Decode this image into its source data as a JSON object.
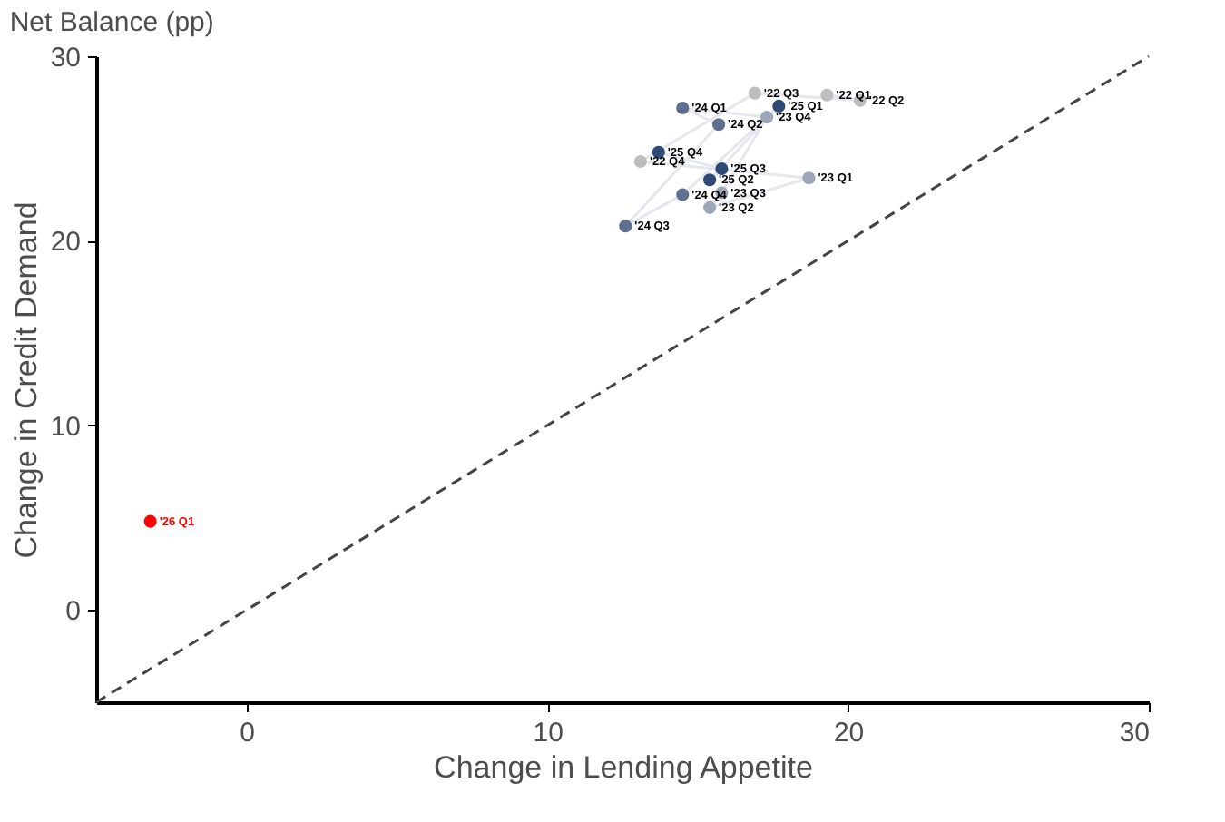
{
  "chart_data": {
    "type": "scatter",
    "title": "Net Balance (pp)",
    "xlabel": "Change in Lending Appetite",
    "ylabel": "Change in Credit Demand",
    "xlim": [
      -5,
      30
    ],
    "ylim": [
      -5,
      30
    ],
    "xticks": [
      0,
      10,
      20,
      30
    ],
    "yticks": [
      0,
      10,
      20,
      30
    ],
    "grid": false,
    "series": [
      {
        "type": "line",
        "color": "#e4e7ee",
        "line_style": "solid",
        "marker": "none",
        "x": [
          19.3,
          20.4,
          16.9,
          13.1,
          18.7,
          15.4,
          15.8,
          17.3,
          14.5,
          15.7,
          12.6,
          14.5,
          17.7,
          15.4,
          15.8,
          13.7
        ],
        "values": [
          27.9,
          27.6,
          28.0,
          24.3,
          23.4,
          21.8,
          22.6,
          26.7,
          27.2,
          26.3,
          20.8,
          22.5,
          27.3,
          23.3,
          23.9,
          24.8
        ]
      },
      {
        "type": "line",
        "color": "#444444",
        "line_style": "dashed",
        "marker": "none",
        "x": [
          -5,
          30
        ],
        "values": [
          -5,
          30
        ]
      },
      {
        "marker": "circle",
        "x": [
          19.3,
          20.4,
          16.9,
          13.1,
          18.7,
          15.4,
          15.8,
          17.3,
          14.5,
          15.7,
          12.6,
          14.5,
          17.7,
          15.4,
          15.8,
          13.7,
          -3.2
        ],
        "values": [
          27.9,
          27.6,
          28.0,
          24.3,
          23.4,
          21.8,
          22.6,
          26.7,
          27.2,
          26.3,
          20.8,
          22.5,
          27.3,
          23.3,
          23.9,
          24.8,
          4.8
        ],
        "colors": [
          "#bdbdbd",
          "#bdbdbd",
          "#bdbdbd",
          "#bdbdbd",
          "#9ea7ba",
          "#9ea7ba",
          "#9ea7ba",
          "#9ea7ba",
          "#5f6f8f",
          "#5f6f8f",
          "#5f6f8f",
          "#5f6f8f",
          "#2c4a75",
          "#2c4a75",
          "#2c4a75",
          "#2c4a75",
          "#ff0000"
        ],
        "value_labels": [
          "'22 Q1",
          "'22 Q2",
          "'22 Q3",
          "'22 Q4",
          "'23 Q1",
          "'23 Q2",
          "'23 Q3",
          "'23 Q4",
          "'24 Q1",
          "'24 Q2",
          "'24 Q3",
          "'24 Q4",
          "'25 Q1",
          "'25 Q2",
          "'25 Q3",
          "'25 Q4",
          "'26 Q1"
        ]
      }
    ]
  }
}
